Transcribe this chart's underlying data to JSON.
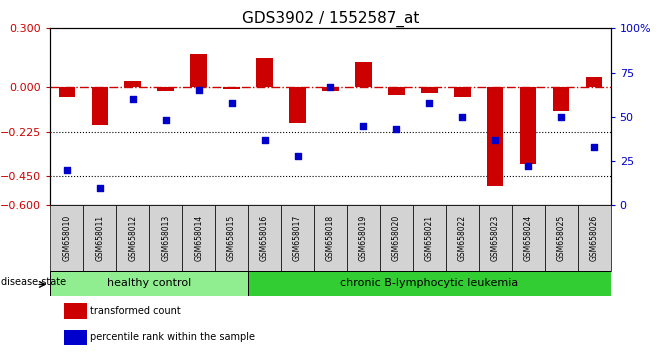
{
  "title": "GDS3902 / 1552587_at",
  "samples": [
    "GSM658010",
    "GSM658011",
    "GSM658012",
    "GSM658013",
    "GSM658014",
    "GSM658015",
    "GSM658016",
    "GSM658017",
    "GSM658018",
    "GSM658019",
    "GSM658020",
    "GSM658021",
    "GSM658022",
    "GSM658023",
    "GSM658024",
    "GSM658025",
    "GSM658026"
  ],
  "red_bars": [
    -0.05,
    -0.19,
    0.03,
    -0.02,
    0.17,
    -0.01,
    0.15,
    -0.18,
    -0.02,
    0.13,
    -0.04,
    -0.03,
    -0.05,
    -0.5,
    -0.39,
    -0.12,
    0.05
  ],
  "blue_pct": [
    20,
    10,
    60,
    48,
    65,
    58,
    37,
    28,
    67,
    45,
    43,
    58,
    50,
    37,
    22,
    50,
    33
  ],
  "healthy_count": 6,
  "leukemia_count": 11,
  "healthy_label": "healthy control",
  "leukemia_label": "chronic B-lymphocytic leukemia",
  "disease_state_label": "disease state",
  "legend_red": "transformed count",
  "legend_blue": "percentile rank within the sample",
  "ylim_left": [
    -0.6,
    0.3
  ],
  "ylim_right": [
    0,
    100
  ],
  "yticks_left": [
    -0.6,
    -0.45,
    -0.225,
    0,
    0.3
  ],
  "yticks_right": [
    0,
    25,
    50,
    75,
    100
  ],
  "hline_dotted": [
    -0.225,
    -0.45
  ],
  "red_color": "#cc0000",
  "blue_color": "#0000cc",
  "healthy_bg": "#90ee90",
  "leukemia_bg": "#32cd32",
  "sample_bg": "#d3d3d3",
  "bar_width": 0.5,
  "title_fontsize": 11
}
